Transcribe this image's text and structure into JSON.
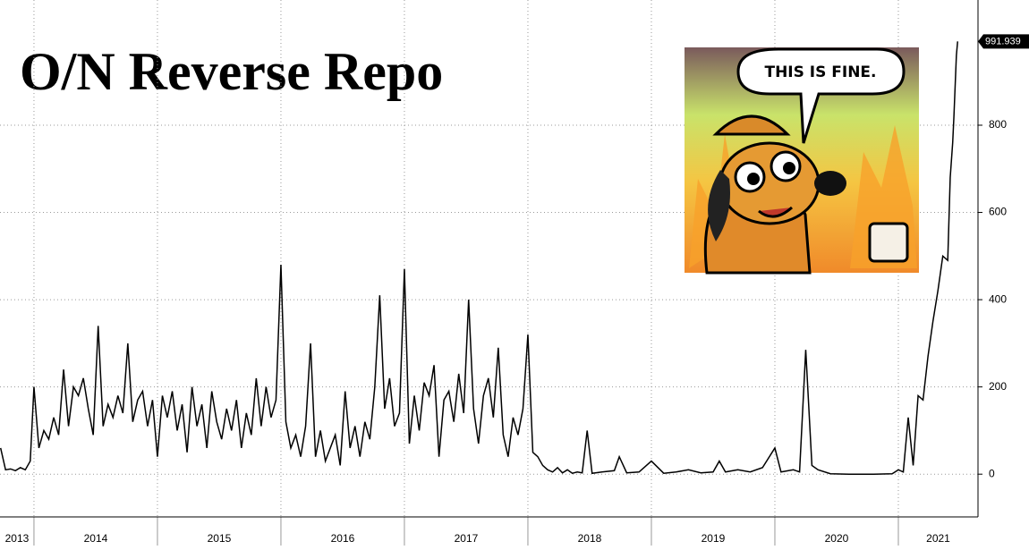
{
  "chart_data": {
    "type": "line",
    "title": "O/N Reverse Repo",
    "x": [
      2013.73,
      2013.77,
      2013.81,
      2013.85,
      2013.89,
      2013.93,
      2013.97,
      2014.0,
      2014.04,
      2014.08,
      2014.12,
      2014.16,
      2014.2,
      2014.24,
      2014.28,
      2014.32,
      2014.36,
      2014.4,
      2014.44,
      2014.48,
      2014.52,
      2014.56,
      2014.6,
      2014.64,
      2014.68,
      2014.72,
      2014.76,
      2014.8,
      2014.84,
      2014.88,
      2014.92,
      2014.96,
      2015.0,
      2015.04,
      2015.08,
      2015.12,
      2015.16,
      2015.2,
      2015.24,
      2015.28,
      2015.32,
      2015.36,
      2015.4,
      2015.44,
      2015.48,
      2015.52,
      2015.56,
      2015.6,
      2015.64,
      2015.68,
      2015.72,
      2015.76,
      2015.8,
      2015.84,
      2015.88,
      2015.92,
      2015.96,
      2016.0,
      2016.04,
      2016.08,
      2016.12,
      2016.16,
      2016.2,
      2016.24,
      2016.28,
      2016.32,
      2016.36,
      2016.4,
      2016.44,
      2016.48,
      2016.52,
      2016.56,
      2016.6,
      2016.64,
      2016.68,
      2016.72,
      2016.76,
      2016.8,
      2016.84,
      2016.88,
      2016.92,
      2016.96,
      2017.0,
      2017.04,
      2017.08,
      2017.12,
      2017.16,
      2017.2,
      2017.24,
      2017.28,
      2017.32,
      2017.36,
      2017.4,
      2017.44,
      2017.48,
      2017.52,
      2017.56,
      2017.6,
      2017.64,
      2017.68,
      2017.72,
      2017.76,
      2017.8,
      2017.84,
      2017.88,
      2017.92,
      2017.96,
      2018.0,
      2018.04,
      2018.08,
      2018.12,
      2018.16,
      2018.2,
      2018.24,
      2018.28,
      2018.32,
      2018.36,
      2018.4,
      2018.44,
      2018.48,
      2018.52,
      2018.6,
      2018.7,
      2018.74,
      2018.8,
      2018.9,
      2019.0,
      2019.1,
      2019.2,
      2019.3,
      2019.4,
      2019.5,
      2019.55,
      2019.6,
      2019.7,
      2019.8,
      2019.9,
      2020.0,
      2020.05,
      2020.15,
      2020.2,
      2020.25,
      2020.3,
      2020.35,
      2020.45,
      2020.6,
      2020.8,
      2020.95,
      2021.0,
      2021.04,
      2021.08,
      2021.12,
      2021.16,
      2021.2,
      2021.24,
      2021.28,
      2021.32,
      2021.36,
      2021.4,
      2021.42,
      2021.44,
      2021.45,
      2021.47,
      2021.48
    ],
    "values": [
      60,
      10,
      12,
      8,
      15,
      10,
      30,
      200,
      60,
      100,
      80,
      130,
      90,
      240,
      110,
      200,
      180,
      220,
      150,
      90,
      340,
      110,
      160,
      130,
      180,
      140,
      300,
      120,
      170,
      190,
      110,
      170,
      40,
      180,
      130,
      190,
      100,
      160,
      50,
      200,
      110,
      160,
      60,
      190,
      120,
      80,
      150,
      100,
      170,
      60,
      140,
      90,
      220,
      110,
      200,
      130,
      170,
      480,
      120,
      60,
      90,
      40,
      110,
      300,
      40,
      100,
      30,
      60,
      90,
      20,
      190,
      60,
      110,
      40,
      120,
      80,
      200,
      410,
      150,
      220,
      110,
      140,
      470,
      70,
      180,
      100,
      210,
      180,
      250,
      40,
      170,
      190,
      120,
      230,
      140,
      400,
      150,
      70,
      180,
      220,
      130,
      290,
      90,
      40,
      130,
      90,
      150,
      320,
      50,
      40,
      20,
      10,
      5,
      15,
      3,
      10,
      2,
      5,
      3,
      100,
      2,
      5,
      8,
      40,
      3,
      5,
      30,
      2,
      5,
      10,
      3,
      5,
      30,
      5,
      10,
      5,
      15,
      60,
      5,
      10,
      5,
      285,
      20,
      10,
      1,
      0,
      0,
      1,
      10,
      5,
      130,
      20,
      180,
      170,
      270,
      350,
      420,
      500,
      490,
      680,
      760,
      820,
      960,
      991.939
    ],
    "color": "#000000",
    "xlim": [
      2013.725,
      2021.645
    ],
    "xticks": [
      2013,
      2014,
      2015,
      2016,
      2017,
      2018,
      2019,
      2020,
      2021
    ],
    "ylim": [
      -98,
      1087
    ],
    "yticks": [
      0,
      200,
      400,
      600,
      800
    ],
    "grid": true
  },
  "inset": {
    "caption": "THIS IS FINE."
  }
}
